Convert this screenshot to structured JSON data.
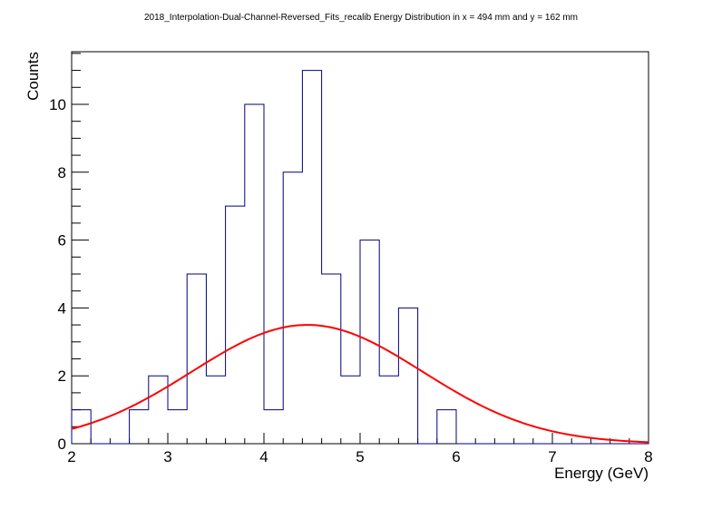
{
  "chart_data": {
    "type": "bar",
    "title": "2018_Interpolation-Dual-Channel-Reversed_Fits_recalib Energy Distribution in x = 494 mm and y = 162 mm",
    "xlabel": "Energy (GeV)",
    "ylabel": "Counts",
    "xlim": [
      2,
      8
    ],
    "ylim": [
      0,
      11.55
    ],
    "grid": false,
    "x_ticks": [
      2,
      3,
      4,
      5,
      6,
      7,
      8
    ],
    "y_ticks": [
      0,
      2,
      4,
      6,
      8,
      10
    ],
    "histogram": {
      "bin_width": 0.2,
      "bin_edges_start": 2.0,
      "counts": [
        1,
        0,
        0,
        1,
        2,
        1,
        5,
        2,
        7,
        10,
        1,
        8,
        11,
        5,
        2,
        6,
        2,
        4,
        0,
        1,
        0,
        0,
        0,
        0,
        0,
        0,
        0,
        0,
        0,
        0
      ],
      "color": "#000080"
    },
    "fit": {
      "function": "gaussian",
      "constant": 3.5,
      "mean": 4.45,
      "sigma": 1.2,
      "color": "#ff0000"
    }
  }
}
